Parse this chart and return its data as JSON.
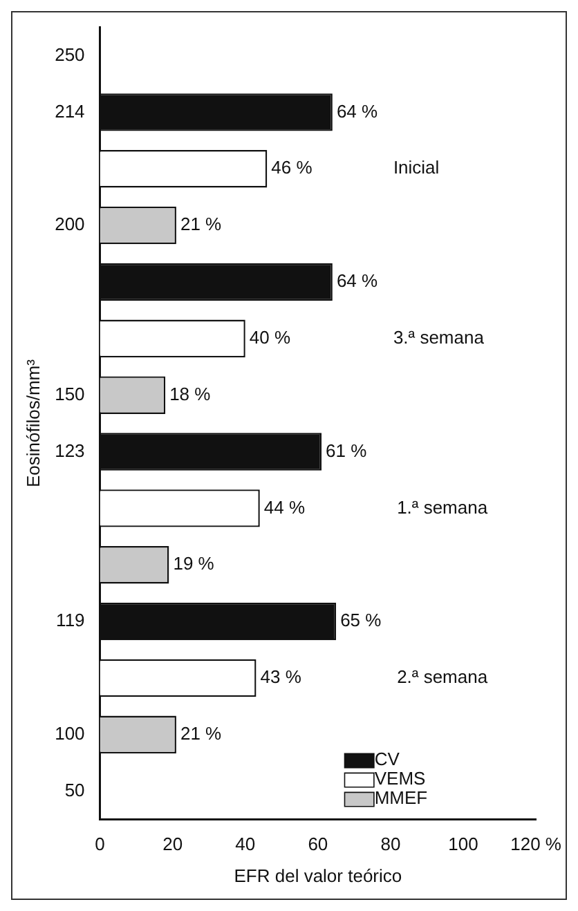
{
  "chart_data": {
    "type": "bar",
    "orientation": "horizontal",
    "xlabel": "EFR del valor teórico",
    "ylabel": "Eosinófilos/mm³",
    "categories": [
      "250",
      "214",
      null,
      "200",
      null,
      null,
      "150",
      "123",
      null,
      null,
      "119",
      null,
      "100",
      "50"
    ],
    "series": [
      {
        "name": "CV",
        "color": "#111111",
        "values": [
          null,
          64,
          null,
          null,
          64,
          null,
          null,
          61,
          null,
          null,
          65,
          null,
          null,
          null
        ],
        "value_labels": [
          null,
          "64 %",
          null,
          null,
          "64 %",
          null,
          null,
          "61 %",
          null,
          null,
          "65 %",
          null,
          null,
          null
        ]
      },
      {
        "name": "VEMS",
        "color": "#ffffff",
        "values": [
          null,
          null,
          46,
          null,
          null,
          40,
          null,
          null,
          44,
          null,
          null,
          43,
          null,
          null
        ],
        "value_labels": [
          null,
          null,
          "46 %",
          null,
          null,
          "40 %",
          null,
          null,
          "44 %",
          null,
          null,
          "43 %",
          null,
          null
        ]
      },
      {
        "name": "MMEF",
        "color": "#c8c8c8",
        "values": [
          null,
          null,
          null,
          21,
          null,
          null,
          18,
          null,
          null,
          19,
          null,
          null,
          21,
          null
        ],
        "value_labels": [
          null,
          null,
          null,
          "21 %",
          null,
          null,
          "18 %",
          null,
          null,
          "19 %",
          null,
          null,
          "21 %",
          null
        ]
      }
    ],
    "xlim": [
      0,
      120
    ],
    "xticks": [
      0,
      20,
      40,
      60,
      80,
      100,
      {
        "value": 120,
        "label": "120 %"
      }
    ],
    "annotations": [
      "Inicial",
      "3.ª semana",
      "1.ª semana",
      "2.ª semana"
    ],
    "grid": false,
    "legend": "bottom right"
  }
}
